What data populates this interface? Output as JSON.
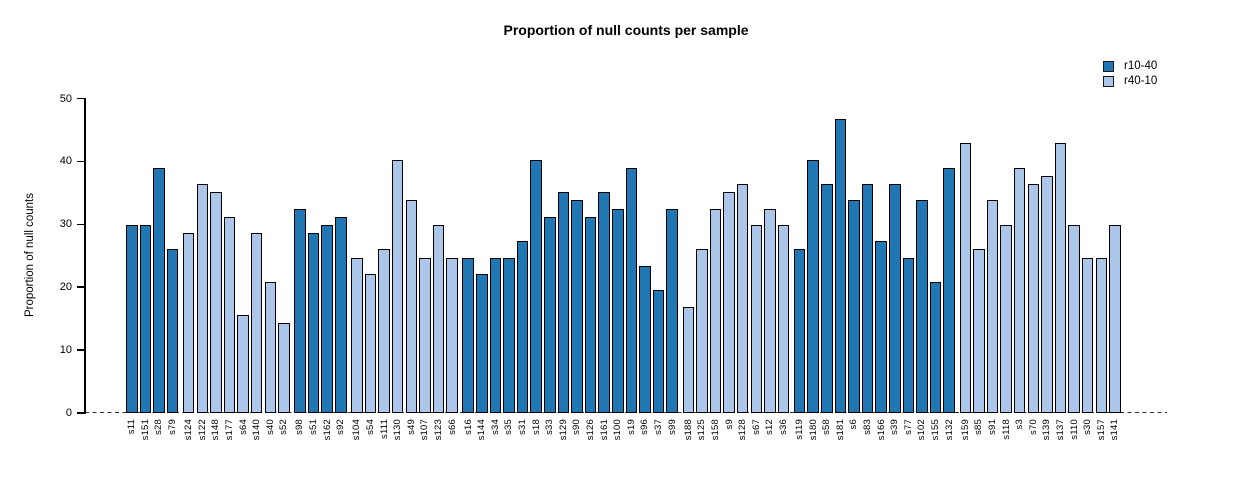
{
  "chart_data": {
    "type": "bar",
    "title": "Proportion of null counts per sample",
    "xlabel": "",
    "ylabel": "Proportion of null counts",
    "ylim": [
      0,
      50
    ],
    "yticks": [
      0,
      10,
      20,
      30,
      40,
      50
    ],
    "grid": false,
    "zero_line_style": "dashed",
    "legend_position": "top-right",
    "legend": [
      {
        "label": "r10-40",
        "color": "#2077b4"
      },
      {
        "label": "r40-10",
        "color": "#abc6e8"
      }
    ],
    "series_colors": {
      "r10-40": "#2077b4",
      "r40-10": "#abc6e8"
    },
    "groups": [
      {
        "series": "r10-40",
        "categories": [
          "s11",
          "s151",
          "s28",
          "s79"
        ],
        "values": [
          29.9,
          29.9,
          39.0,
          26.0
        ]
      },
      {
        "series": "r40-10",
        "categories": [
          "s124",
          "s122",
          "s148",
          "s177",
          "s64",
          "s140",
          "s40",
          "s52"
        ],
        "values": [
          28.6,
          36.4,
          35.1,
          31.2,
          15.6,
          28.6,
          20.8,
          14.3
        ]
      },
      {
        "series": "r10-40",
        "categories": [
          "s98",
          "s51",
          "s162",
          "s92"
        ],
        "values": [
          32.5,
          28.6,
          29.9,
          31.2
        ]
      },
      {
        "series": "r40-10",
        "categories": [
          "s104",
          "s54",
          "s111",
          "s130",
          "s49",
          "s107",
          "s123",
          "s66"
        ],
        "values": [
          24.7,
          22.1,
          26.0,
          40.3,
          33.8,
          24.7,
          29.9,
          24.7
        ]
      },
      {
        "series": "r10-40",
        "categories": [
          "s16",
          "s144",
          "s34",
          "s35",
          "s31",
          "s18",
          "s33",
          "s129",
          "s90",
          "s126",
          "s161",
          "s100",
          "s19",
          "s96",
          "s37",
          "s99"
        ],
        "values": [
          24.7,
          22.1,
          24.7,
          24.7,
          27.3,
          40.3,
          31.2,
          35.1,
          33.8,
          31.2,
          35.1,
          32.5,
          39.0,
          23.4,
          19.5,
          32.5
        ]
      },
      {
        "series": "r40-10",
        "categories": [
          "s188",
          "s125",
          "s158",
          "s9",
          "s128",
          "s67",
          "s12",
          "s36"
        ],
        "values": [
          16.9,
          26.0,
          32.5,
          35.1,
          36.4,
          29.9,
          32.5,
          29.9
        ]
      },
      {
        "series": "r10-40",
        "categories": [
          "s119",
          "s180",
          "s58",
          "s181",
          "s6",
          "s83",
          "s166",
          "s39",
          "s77",
          "s102",
          "s155",
          "s132"
        ],
        "values": [
          26.0,
          40.3,
          36.4,
          46.8,
          33.8,
          36.4,
          27.3,
          36.4,
          24.7,
          33.8,
          20.8,
          39.0
        ]
      },
      {
        "series": "r40-10",
        "categories": [
          "s159",
          "s85",
          "s91",
          "s118",
          "s3",
          "s70",
          "s139",
          "s137",
          "s110",
          "s30",
          "s157",
          "s141"
        ],
        "values": [
          42.9,
          26.0,
          33.8,
          29.9,
          39.0,
          36.4,
          37.7,
          42.9,
          29.9,
          24.7,
          24.7,
          29.9
        ]
      }
    ]
  }
}
